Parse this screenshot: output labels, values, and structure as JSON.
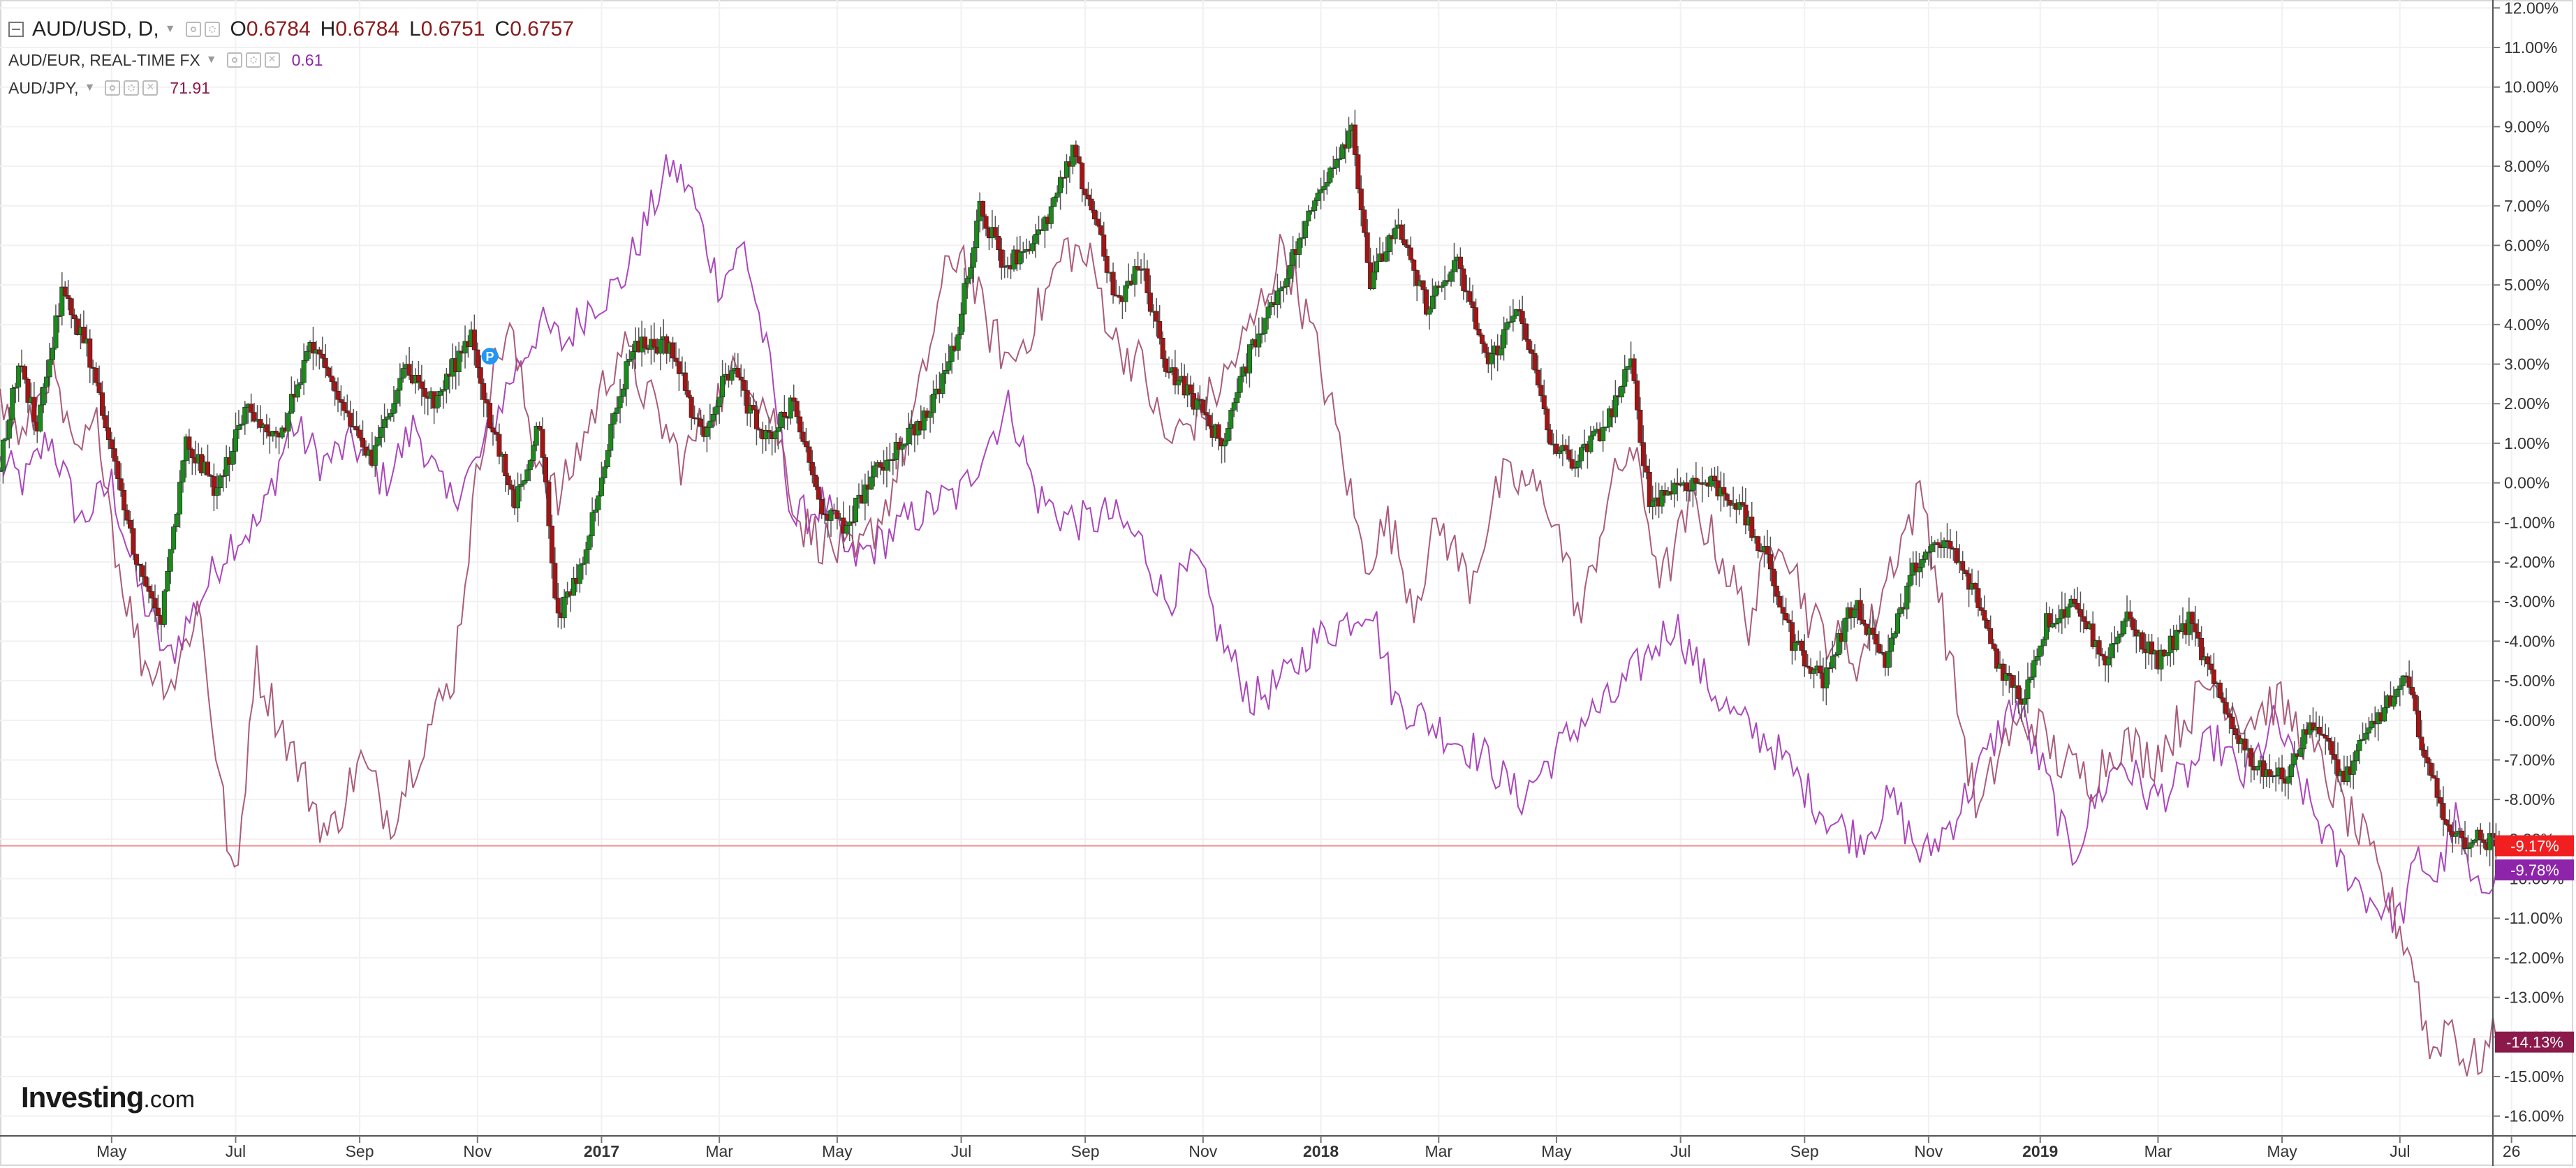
{
  "legend": {
    "main": {
      "symbol": "AUD/USD, D,",
      "o_label": "O",
      "o": "0.6784",
      "h_label": "H",
      "h": "0.6784",
      "l_label": "L",
      "l": "0.6751",
      "c_label": "C",
      "c": "0.6757"
    },
    "series2": {
      "label": "AUD/EUR, REAL-TIME FX",
      "value": "0.61",
      "value_color": "#8e24aa"
    },
    "series3": {
      "label": "AUD/JPY,",
      "value": "71.91",
      "value_color": "#8b1a4a"
    },
    "icons": [
      "eye-icon",
      "gear-icon",
      "close-icon",
      "dropdown-caret-icon",
      "collapse-toggle-icon"
    ]
  },
  "watermark": {
    "brand": "Investing",
    "suffix": ".com"
  },
  "marker": {
    "label": "P",
    "color": "#2196f3"
  },
  "colors": {
    "up": "#1b8a1b",
    "down": "#a31515",
    "wick": "#555555",
    "audeur": "#9c27b0",
    "audjpy": "#a24a6b",
    "baseline": "#f28b8b",
    "grid": "#f1f1f1",
    "axis": "#999999"
  },
  "chart_data": {
    "type": "line",
    "title": "",
    "scale": "percent change",
    "ylim": [
      -16.5,
      12.2
    ],
    "yticks": [
      "12.00%",
      "11.00%",
      "10.00%",
      "9.00%",
      "8.00%",
      "7.00%",
      "6.00%",
      "5.00%",
      "4.00%",
      "3.00%",
      "2.00%",
      "1.00%",
      "0.00%",
      "-1.00%",
      "-2.00%",
      "-3.00%",
      "-4.00%",
      "-5.00%",
      "-6.00%",
      "-7.00%",
      "-8.00%",
      "-9.00%",
      "-10.00%",
      "-11.00%",
      "-12.00%",
      "-13.00%",
      "-14.00%",
      "-15.00%",
      "-16.00%"
    ],
    "xlim": [
      0,
      40.2
    ],
    "xticks": [
      {
        "label": "May",
        "x": 1.8,
        "bold": false
      },
      {
        "label": "Jul",
        "x": 3.8,
        "bold": false
      },
      {
        "label": "Sep",
        "x": 5.8,
        "bold": false
      },
      {
        "label": "Nov",
        "x": 7.7,
        "bold": false
      },
      {
        "label": "2017",
        "x": 9.7,
        "bold": true
      },
      {
        "label": "Mar",
        "x": 11.6,
        "bold": false
      },
      {
        "label": "May",
        "x": 13.5,
        "bold": false
      },
      {
        "label": "Jul",
        "x": 15.5,
        "bold": false
      },
      {
        "label": "Sep",
        "x": 17.5,
        "bold": false
      },
      {
        "label": "Nov",
        "x": 19.4,
        "bold": false
      },
      {
        "label": "2018",
        "x": 21.3,
        "bold": true
      },
      {
        "label": "Mar",
        "x": 23.2,
        "bold": false
      },
      {
        "label": "May",
        "x": 25.1,
        "bold": false
      },
      {
        "label": "Jul",
        "x": 27.1,
        "bold": false
      },
      {
        "label": "Sep",
        "x": 29.1,
        "bold": false
      },
      {
        "label": "Nov",
        "x": 31.1,
        "bold": false
      },
      {
        "label": "2019",
        "x": 32.9,
        "bold": true
      },
      {
        "label": "Mar",
        "x": 34.8,
        "bold": false
      },
      {
        "label": "May",
        "x": 36.8,
        "bold": false
      },
      {
        "label": "Jul",
        "x": 38.7,
        "bold": false
      },
      {
        "label": "26",
        "x": 40.5,
        "bold": false
      }
    ],
    "baseline": -9.17,
    "series": [
      {
        "name": "AUD/USD, D",
        "style": "candlestick",
        "x_range": [
          0,
          40.3
        ],
        "x": [
          0,
          0.3,
          0.6,
          1.0,
          1.4,
          1.9,
          2.3,
          2.6,
          3.0,
          3.5,
          4.0,
          4.5,
          5.0,
          5.5,
          6.0,
          6.5,
          7.0,
          7.6,
          7.9,
          8.3,
          8.7,
          9.0,
          9.4,
          9.8,
          10.2,
          10.8,
          11.3,
          11.8,
          12.3,
          12.8,
          13.2,
          13.6,
          14.0,
          14.5,
          15.0,
          15.4,
          15.8,
          16.2,
          16.8,
          17.3,
          17.7,
          18.0,
          18.4,
          18.8,
          19.3,
          19.7,
          20.2,
          20.8,
          21.3,
          21.8,
          22.1,
          22.5,
          23.0,
          23.5,
          24.0,
          24.5,
          25.0,
          25.4,
          25.9,
          26.3,
          26.6,
          27.1,
          27.6,
          28.0,
          28.5,
          28.9,
          29.4,
          29.9,
          30.4,
          30.9,
          31.4,
          31.9,
          32.2,
          32.6,
          33.0,
          33.5,
          33.9,
          34.3,
          34.8,
          35.3,
          35.8,
          36.3,
          36.8,
          37.3,
          37.8,
          38.3,
          38.8,
          39.3,
          39.6,
          40.0,
          40.3
        ],
        "values": [
          0.5,
          3.0,
          1.5,
          4.8,
          3.5,
          0.0,
          -2.5,
          -3.5,
          1.0,
          -0.2,
          2.0,
          1.0,
          3.5,
          2.0,
          0.5,
          3.0,
          2.0,
          3.8,
          1.5,
          -0.5,
          1.5,
          -3.5,
          -2.0,
          1.0,
          3.5,
          3.5,
          1.2,
          3.0,
          1.0,
          2.0,
          -0.5,
          -1.2,
          0.0,
          1.0,
          1.8,
          3.5,
          7.0,
          5.5,
          6.3,
          8.3,
          6.5,
          4.5,
          5.5,
          3.0,
          2.0,
          1.0,
          3.5,
          5.5,
          7.5,
          9.0,
          5.0,
          6.5,
          4.5,
          5.5,
          3.0,
          4.5,
          1.0,
          0.5,
          1.5,
          3.0,
          -0.5,
          0.0,
          0.0,
          -0.5,
          -2.0,
          -4.0,
          -5.0,
          -3.0,
          -4.5,
          -2.0,
          -1.5,
          -3.0,
          -4.5,
          -5.5,
          -3.5,
          -3.0,
          -4.5,
          -3.5,
          -4.5,
          -3.5,
          -5.5,
          -7.0,
          -7.5,
          -6.0,
          -7.5,
          -6.0,
          -5.0,
          -8.0,
          -9.0,
          -9.0,
          -9.17
        ]
      },
      {
        "name": "AUD/EUR, REAL-TIME FX",
        "style": "line",
        "x_range": [
          0,
          40.3
        ],
        "x": [
          0,
          0.4,
          0.8,
          1.3,
          1.8,
          2.2,
          2.7,
          3.2,
          3.7,
          4.2,
          4.7,
          5.2,
          5.7,
          6.2,
          6.7,
          7.2,
          7.7,
          8.2,
          8.7,
          9.1,
          9.5,
          10.0,
          10.4,
          10.8,
          11.1,
          11.6,
          12.0,
          12.4,
          12.8,
          13.3,
          13.7,
          14.2,
          14.6,
          15.1,
          15.5,
          15.9,
          16.3,
          16.7,
          17.1,
          17.5,
          17.9,
          18.4,
          18.8,
          19.3,
          19.7,
          20.2,
          20.7,
          21.2,
          21.7,
          22.1,
          22.5,
          23.0,
          23.5,
          24.0,
          24.5,
          25.0,
          25.5,
          26.0,
          26.5,
          27.0,
          27.5,
          28.0,
          28.5,
          29.0,
          29.5,
          30.0,
          30.5,
          31.0,
          31.5,
          32.0,
          32.5,
          33.0,
          33.4,
          33.8,
          34.2,
          34.7,
          35.2,
          35.7,
          36.2,
          36.7,
          37.2,
          37.7,
          38.2,
          38.7,
          39.0,
          39.3,
          39.6,
          39.9,
          40.2
        ],
        "values": [
          0.5,
          0.0,
          1.2,
          -1.0,
          0.0,
          -2.5,
          -4.5,
          -3.0,
          -1.5,
          -1.0,
          1.5,
          0.5,
          1.0,
          0.0,
          1.5,
          -0.5,
          0.5,
          2.5,
          4.0,
          3.5,
          4.5,
          5.0,
          6.5,
          8.0,
          7.5,
          5.0,
          6.0,
          3.0,
          -1.0,
          -0.5,
          -2.0,
          -1.5,
          -1.0,
          -0.5,
          -0.3,
          1.0,
          2.0,
          -0.3,
          -0.8,
          -1.0,
          -0.8,
          -1.5,
          -3.0,
          -2.0,
          -4.0,
          -5.5,
          -5.0,
          -4.0,
          -3.5,
          -3.0,
          -5.5,
          -6.0,
          -6.5,
          -7.0,
          -8.0,
          -7.0,
          -6.0,
          -5.5,
          -4.5,
          -3.5,
          -5.0,
          -6.0,
          -6.5,
          -7.5,
          -8.5,
          -9.0,
          -8.0,
          -9.5,
          -8.5,
          -7.0,
          -5.5,
          -7.5,
          -9.5,
          -8.0,
          -7.0,
          -8.0,
          -7.5,
          -6.5,
          -7.5,
          -6.0,
          -8.0,
          -9.5,
          -10.5,
          -11.0,
          -9.5,
          -10.0,
          -8.5,
          -10.5,
          -9.78
        ]
      },
      {
        "name": "AUD/JPY",
        "style": "line",
        "x_range": [
          0,
          40.3
        ],
        "x": [
          0,
          0.4,
          0.8,
          1.2,
          1.6,
          1.9,
          2.3,
          2.8,
          3.2,
          3.5,
          3.8,
          4.1,
          4.5,
          4.9,
          5.3,
          5.8,
          6.3,
          6.8,
          7.3,
          7.6,
          7.9,
          8.2,
          8.6,
          9.0,
          9.5,
          10.0,
          10.5,
          11.0,
          11.5,
          12.0,
          12.5,
          12.9,
          13.3,
          13.8,
          14.3,
          14.8,
          15.2,
          15.5,
          15.9,
          16.3,
          16.8,
          17.2,
          17.6,
          18.0,
          18.4,
          18.8,
          19.2,
          19.7,
          20.2,
          20.7,
          21.2,
          21.6,
          22.0,
          22.4,
          22.8,
          23.2,
          23.7,
          24.2,
          24.6,
          25.0,
          25.5,
          25.9,
          26.3,
          26.8,
          27.3,
          27.8,
          28.2,
          28.7,
          29.2,
          29.6,
          30.0,
          30.5,
          31.0,
          31.5,
          31.9,
          32.3,
          32.8,
          33.2,
          33.7,
          34.2,
          34.7,
          35.2,
          35.7,
          36.2,
          36.7,
          37.2,
          37.7,
          38.1,
          38.5,
          38.9,
          39.2,
          39.5,
          39.8,
          40.2
        ],
        "values": [
          2.0,
          1.0,
          3.0,
          0.5,
          1.5,
          -2.0,
          -4.5,
          -5.0,
          -3.0,
          -7.0,
          -10.5,
          -4.5,
          -6.0,
          -7.5,
          -9.0,
          -7.0,
          -8.5,
          -6.5,
          -5.0,
          -1.0,
          2.5,
          4.0,
          1.0,
          -0.5,
          1.5,
          3.5,
          2.0,
          0.5,
          2.0,
          3.0,
          1.5,
          -1.0,
          -1.5,
          -2.0,
          -0.5,
          2.0,
          5.0,
          6.0,
          4.0,
          3.0,
          4.5,
          6.0,
          5.5,
          3.5,
          3.0,
          1.0,
          1.5,
          2.5,
          4.0,
          6.0,
          3.5,
          1.0,
          -2.0,
          -1.0,
          -3.0,
          -1.0,
          -2.5,
          0.0,
          0.0,
          -0.5,
          -3.5,
          -0.5,
          1.0,
          -2.5,
          -0.5,
          -2.0,
          -3.5,
          -1.0,
          -3.5,
          -4.0,
          -4.5,
          -2.0,
          -0.2,
          -5.0,
          -8.5,
          -6.5,
          -6.0,
          -7.0,
          -7.5,
          -6.5,
          -7.0,
          -6.0,
          -5.0,
          -6.0,
          -5.5,
          -6.5,
          -8.0,
          -9.0,
          -10.5,
          -12.0,
          -14.5,
          -13.5,
          -14.8,
          -14.13
        ]
      }
    ],
    "end_labels": [
      {
        "text": "-9.17%",
        "value": -9.17,
        "color": "#f11f1f"
      },
      {
        "text": "-9.78%",
        "value": -9.78,
        "color": "#8e24aa"
      },
      {
        "text": "-14.13%",
        "value": -14.13,
        "color": "#8b1a4a"
      }
    ],
    "p_marker_x": 7.9,
    "p_marker_value": 3.2
  }
}
